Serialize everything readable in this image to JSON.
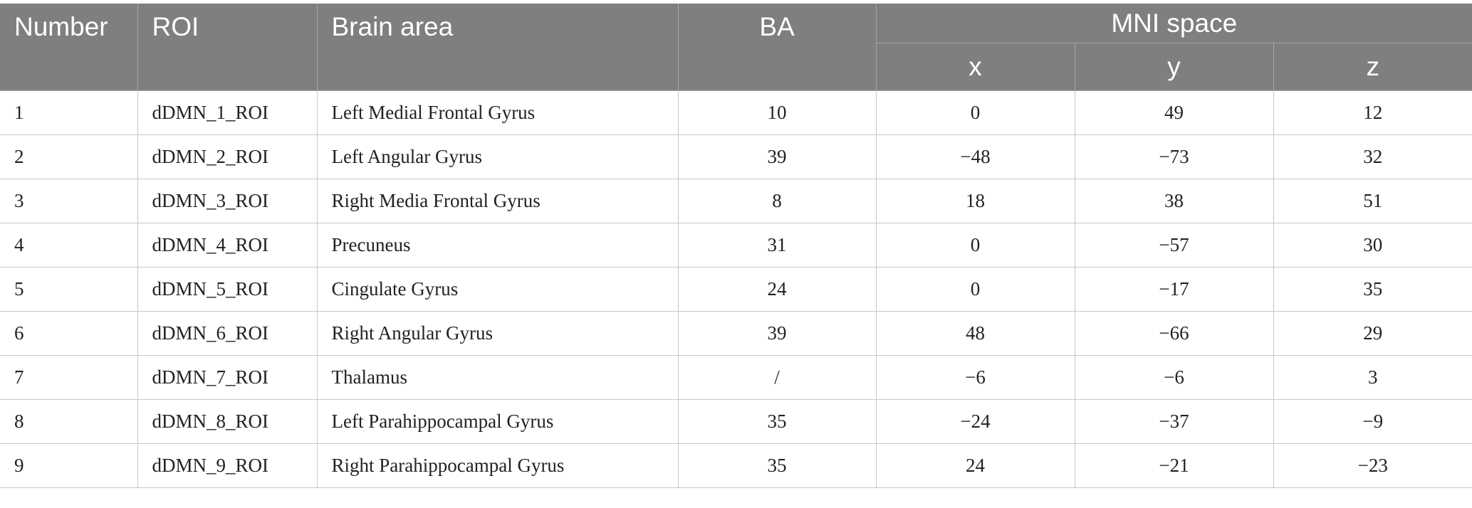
{
  "header": {
    "number": "Number",
    "roi": "ROI",
    "brain_area": "Brain area",
    "ba": "BA",
    "mni_space": "MNI space",
    "x": "x",
    "y": "y",
    "z": "z"
  },
  "rows": [
    {
      "number": "1",
      "roi": "dDMN_1_ROI",
      "area": "Left Medial Frontal Gyrus",
      "ba": "10",
      "x": "0",
      "y": "49",
      "z": "12"
    },
    {
      "number": "2",
      "roi": "dDMN_2_ROI",
      "area": "Left Angular Gyrus",
      "ba": "39",
      "x": "−48",
      "y": "−73",
      "z": "32"
    },
    {
      "number": "3",
      "roi": "dDMN_3_ROI",
      "area": "Right Media Frontal Gyrus",
      "ba": "8",
      "x": "18",
      "y": "38",
      "z": "51"
    },
    {
      "number": "4",
      "roi": "dDMN_4_ROI",
      "area": "Precuneus",
      "ba": "31",
      "x": "0",
      "y": "−57",
      "z": "30"
    },
    {
      "number": "5",
      "roi": "dDMN_5_ROI",
      "area": "Cingulate Gyrus",
      "ba": "24",
      "x": "0",
      "y": "−17",
      "z": "35"
    },
    {
      "number": "6",
      "roi": "dDMN_6_ROI",
      "area": "Right Angular Gyrus",
      "ba": "39",
      "x": "48",
      "y": "−66",
      "z": "29"
    },
    {
      "number": "7",
      "roi": "dDMN_7_ROI",
      "area": "Thalamus",
      "ba": "/",
      "x": "−6",
      "y": "−6",
      "z": "3"
    },
    {
      "number": "8",
      "roi": "dDMN_8_ROI",
      "area": "Left Parahippocampal Gyrus",
      "ba": "35",
      "x": "−24",
      "y": "−37",
      "z": "−9"
    },
    {
      "number": "9",
      "roi": "dDMN_9_ROI",
      "area": "Right Parahippocampal Gyrus",
      "ba": "35",
      "x": "24",
      "y": "−21",
      "z": "−23"
    }
  ]
}
